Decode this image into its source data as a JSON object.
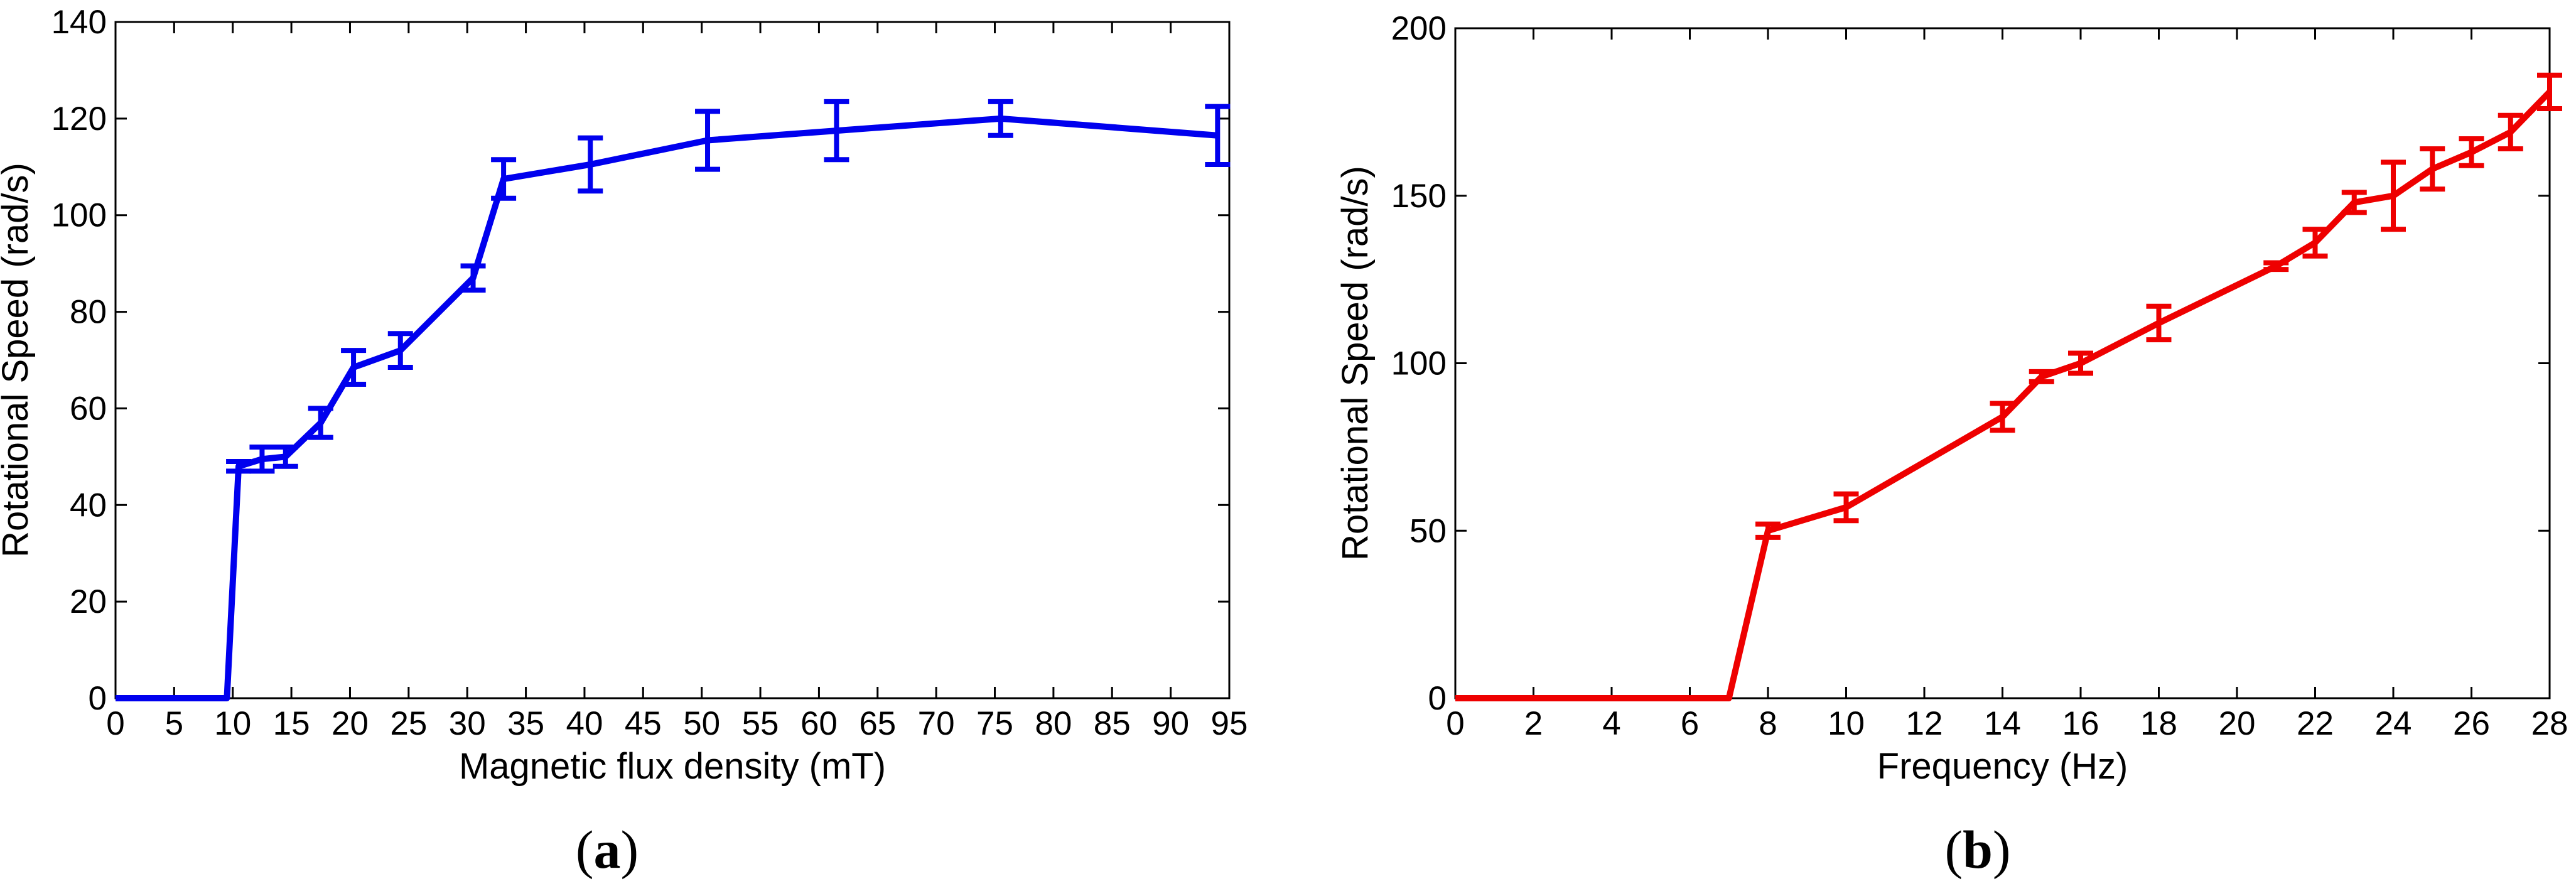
{
  "chart_data": [
    {
      "type": "line",
      "panel_label": "a",
      "xlabel": "Magnetic flux density (mT)",
      "ylabel": "Rotational Speed (rad/s)",
      "xlim": [
        0,
        95
      ],
      "ylim": [
        0,
        140
      ],
      "xticks": [
        0,
        5,
        10,
        15,
        20,
        25,
        30,
        35,
        40,
        45,
        50,
        55,
        60,
        65,
        70,
        75,
        80,
        85,
        90,
        95
      ],
      "yticks": [
        0,
        20,
        40,
        60,
        80,
        100,
        120,
        140
      ],
      "grid": false,
      "color": "#0000ee",
      "series": [
        {
          "x": [
            0,
            9.5,
            10.5,
            12.5,
            14.5,
            17.5,
            20.3,
            24.3,
            30.5,
            33.1,
            40.5,
            50.5,
            61.5,
            75.5,
            94.0
          ],
          "y": [
            0,
            0,
            48,
            49.5,
            50,
            57,
            68.5,
            72,
            87,
            107.5,
            110.5,
            115.5,
            117.5,
            120,
            116.5
          ],
          "err": [
            0,
            0,
            1,
            2.5,
            2,
            3,
            3.5,
            3.5,
            2.5,
            4,
            5.5,
            6,
            6,
            3.5,
            6
          ]
        }
      ]
    },
    {
      "type": "line",
      "panel_label": "b",
      "xlabel": "Frequency (Hz)",
      "ylabel": "Rotational Speed (rad/s)",
      "xlim": [
        0,
        28
      ],
      "ylim": [
        0,
        200
      ],
      "xticks": [
        0,
        2,
        4,
        6,
        8,
        10,
        12,
        14,
        16,
        18,
        20,
        22,
        24,
        26,
        28
      ],
      "yticks": [
        0,
        50,
        100,
        150,
        200
      ],
      "grid": false,
      "color": "#ee0000",
      "series": [
        {
          "x": [
            0,
            7,
            8,
            10,
            14,
            15,
            16,
            18,
            21,
            22,
            23,
            24,
            25,
            26,
            27,
            28
          ],
          "y": [
            0,
            0,
            50,
            57,
            84,
            96,
            100,
            112,
            129,
            136,
            148,
            150,
            158,
            163,
            169,
            181
          ],
          "err": [
            0,
            0,
            2,
            4,
            4,
            1.5,
            3,
            5,
            1,
            4,
            3,
            10,
            6,
            4,
            5,
            5
          ]
        }
      ]
    }
  ]
}
